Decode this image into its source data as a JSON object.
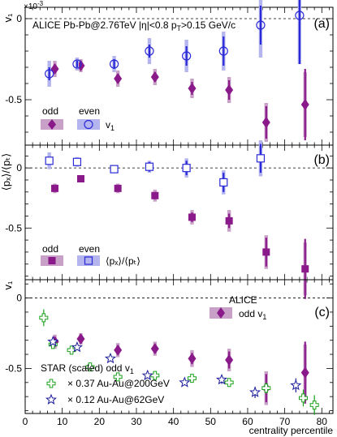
{
  "chart_data": [
    {
      "type": "scatter",
      "panel_tag": "(a)",
      "ylabel": "v₁",
      "yscale_label": "×10",
      "yscale_exp": "-3",
      "header": "ALICE Pb-Pb@2.76TeV  |η|<0.8 p",
      "header_sub": "T",
      "header_tail": ">0.15 GeV/c",
      "ylim": [
        -0.78,
        0.07
      ],
      "ytick_labels": [
        "0",
        "-0.5"
      ],
      "ytick_values": [
        0,
        -0.5
      ],
      "legend": {
        "odd": "odd",
        "even": "even",
        "quantity": "v",
        "quantity_sub": "1"
      },
      "series": [
        {
          "name": "odd",
          "marker": "diamond",
          "x": [
            8,
            15,
            25,
            35,
            45,
            55,
            65,
            75.5
          ],
          "y": [
            -0.31,
            -0.29,
            -0.37,
            -0.36,
            -0.43,
            -0.44,
            -0.64,
            -0.53
          ],
          "stat": [
            0.02,
            0.02,
            0.02,
            0.03,
            0.04,
            0.06,
            0.1,
            0.22
          ],
          "sys": [
            0.05,
            0.04,
            0.05,
            0.05,
            0.06,
            0.08,
            0.12,
            0.2
          ]
        },
        {
          "name": "even",
          "marker": "circle",
          "x": [
            6.5,
            14,
            24,
            33.5,
            43.5,
            53.5,
            63.5,
            74
          ],
          "y": [
            -0.34,
            -0.28,
            -0.28,
            -0.2,
            -0.23,
            -0.2,
            -0.04,
            0.02
          ],
          "stat": [
            0.04,
            0.02,
            0.03,
            0.04,
            0.06,
            0.09,
            0.12,
            0.3
          ],
          "sys": [
            0.08,
            0.04,
            0.05,
            0.08,
            0.1,
            0.12,
            0.2,
            0.3
          ]
        }
      ]
    },
    {
      "type": "scatter",
      "panel_tag": "(b)",
      "ylabel": "⟨pₓ⟩/⟨pₜ⟩",
      "ylim": [
        -0.93,
        0.19
      ],
      "ytick_labels": [
        "0",
        "-0.5"
      ],
      "ytick_values": [
        0,
        -0.5
      ],
      "legend": {
        "odd": "odd",
        "even": "even",
        "quantity": "⟨pₓ⟩/⟨pₜ⟩"
      },
      "series": [
        {
          "name": "odd",
          "marker": "square",
          "x": [
            8,
            15,
            25,
            35,
            45,
            55,
            65,
            75.5
          ],
          "y": [
            -0.17,
            -0.09,
            -0.17,
            -0.23,
            -0.41,
            -0.44,
            -0.7,
            -0.84
          ],
          "stat": [
            0.02,
            0.02,
            0.02,
            0.03,
            0.04,
            0.06,
            0.12,
            0.25
          ],
          "sys": [
            0.04,
            0.03,
            0.04,
            0.05,
            0.06,
            0.09,
            0.14,
            0.22
          ]
        },
        {
          "name": "even",
          "marker": "square-open",
          "x": [
            6.5,
            14,
            24,
            33.5,
            43.5,
            53.5,
            63.5
          ],
          "y": [
            0.06,
            0.05,
            -0.01,
            0.01,
            0.0,
            -0.12,
            0.08
          ],
          "stat": [
            0.03,
            0.02,
            0.02,
            0.04,
            0.06,
            0.08,
            0.12
          ],
          "sys": [
            0.07,
            0.04,
            0.03,
            0.05,
            0.08,
            0.1,
            0.15
          ]
        }
      ]
    },
    {
      "type": "scatter",
      "panel_tag": "(c)",
      "ylabel": "v₁",
      "xlabel": "centrality percentile",
      "xlim": [
        0,
        83
      ],
      "ylim": [
        -0.82,
        0.13
      ],
      "xtick_values": [
        0,
        10,
        20,
        30,
        40,
        50,
        60,
        70,
        80
      ],
      "xtick_labels": [
        "0",
        "10",
        "20",
        "30",
        "40",
        "50",
        "60",
        "70",
        "80"
      ],
      "ytick_labels": [
        "0",
        "-0.5"
      ],
      "ytick_values": [
        0,
        -0.5
      ],
      "alice_label": "ALICE",
      "alice_series_label": "odd v",
      "alice_series_sub": "1",
      "star_title": "STAR (scaled) odd v",
      "star_title_sub": "1",
      "series": [
        {
          "name": "odd v1",
          "marker": "diamond",
          "x": [
            8,
            15,
            25,
            35,
            45,
            55,
            65,
            75.5
          ],
          "y": [
            -0.31,
            -0.29,
            -0.37,
            -0.36,
            -0.43,
            -0.44,
            -0.64,
            -0.53
          ],
          "stat": [
            0.02,
            0.02,
            0.02,
            0.03,
            0.04,
            0.06,
            0.1,
            0.22
          ],
          "sys": [
            0.05,
            0.04,
            0.05,
            0.05,
            0.06,
            0.08,
            0.12,
            0.2
          ]
        },
        {
          "name": "× 0.37  Au-Au@200GeV",
          "marker": "cross-open",
          "x": [
            5,
            7.5,
            12.5,
            17.5,
            25,
            35,
            45,
            55,
            65,
            75,
            78
          ],
          "y": [
            -0.14,
            -0.33,
            -0.37,
            -0.49,
            -0.56,
            -0.55,
            -0.57,
            -0.6,
            -0.64,
            -0.71,
            -0.76
          ],
          "stat": [
            0.06,
            0.03,
            0.02,
            0.02,
            0.02,
            0.02,
            0.02,
            0.03,
            0.04,
            0.06,
            0.07
          ],
          "sys": [
            0,
            0,
            0,
            0,
            0,
            0,
            0,
            0,
            0,
            0,
            0
          ]
        },
        {
          "name": "× 0.12  Au-Au@62GeV",
          "marker": "star-open",
          "x": [
            7.5,
            14,
            23,
            33,
            43,
            53,
            62,
            73
          ],
          "y": [
            -0.31,
            -0.35,
            -0.43,
            -0.55,
            -0.6,
            -0.58,
            -0.67,
            -0.62
          ],
          "stat": [
            0.02,
            0.02,
            0.02,
            0.02,
            0.02,
            0.03,
            0.04,
            0.05
          ],
          "sys": [
            0,
            0,
            0,
            0,
            0,
            0,
            0,
            0
          ]
        }
      ]
    }
  ],
  "colors": {
    "odd": "#8a1a8a",
    "odd_band": "#c8a0c8",
    "even": "#2a2ad8",
    "even_band": "#b4b4ee",
    "star200": "#19a019",
    "star62": "#1a1a9a"
  }
}
